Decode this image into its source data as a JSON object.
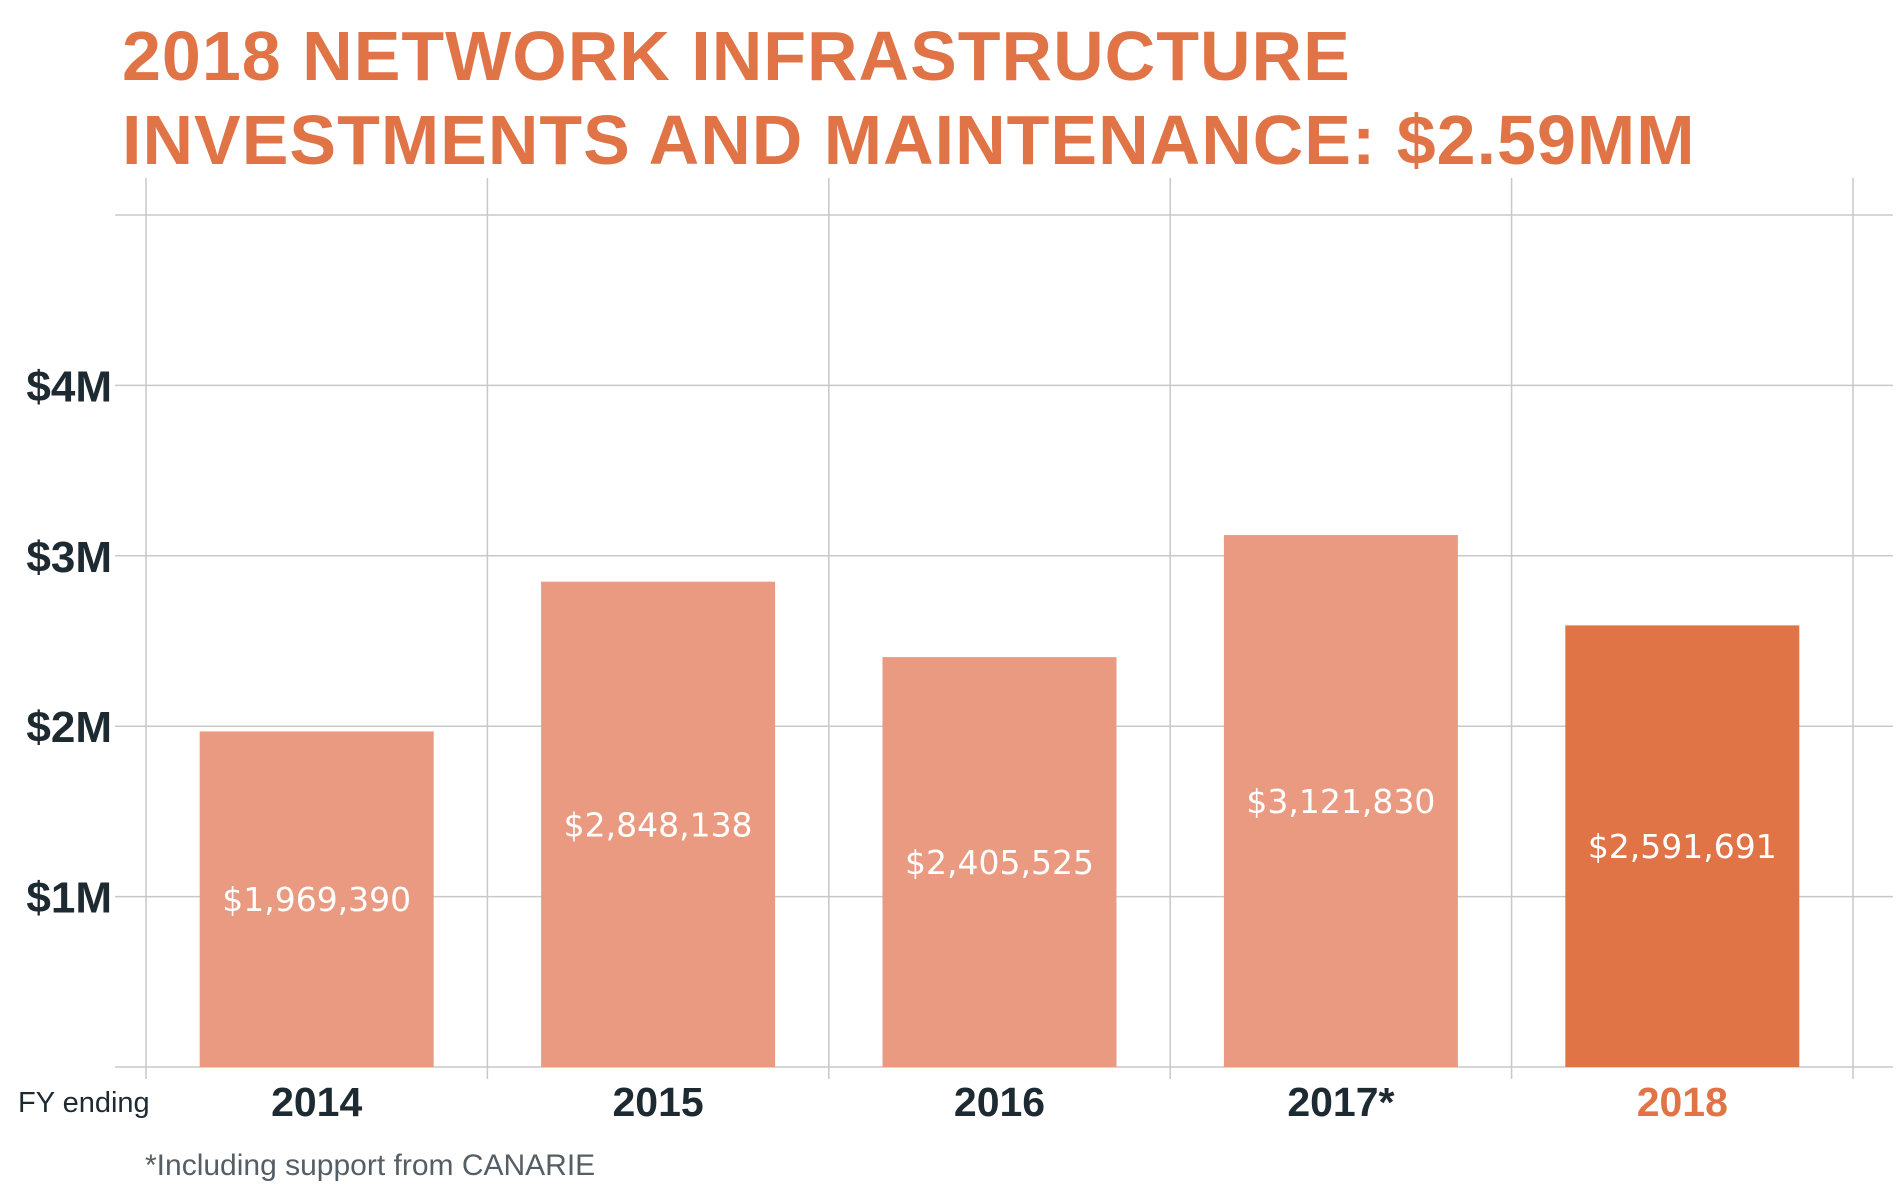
{
  "chart_data": {
    "type": "bar",
    "title": [
      "2018 NETWORK INFRASTRUCTURE",
      "INVESTMENTS AND MAINTENANCE: $2.59MM"
    ],
    "xlabel": "FY ending",
    "ylabel": "",
    "categories": [
      "2014",
      "2015",
      "2016",
      "2017*",
      "2018"
    ],
    "values": [
      1969390,
      2848138,
      2405525,
      3121830,
      2591691
    ],
    "data_labels": [
      "$1,969,390",
      "$2,848,138",
      "$2,405,525",
      "$3,121,830",
      "$2,591,691"
    ],
    "y_ticks": [
      {
        "value": 1000000,
        "label": "$1M"
      },
      {
        "value": 2000000,
        "label": "$2M"
      },
      {
        "value": 3000000,
        "label": "$3M"
      },
      {
        "value": 4000000,
        "label": "$4M"
      }
    ],
    "ylim": [
      0,
      5000000
    ],
    "highlight_index": 4,
    "grid": true,
    "colors": {
      "bar": "#ea9a81",
      "highlight": "#e07447",
      "grid": "#c8c8c8",
      "text": "#1e2a32"
    },
    "footnote": "*Including support from CANARIE"
  }
}
